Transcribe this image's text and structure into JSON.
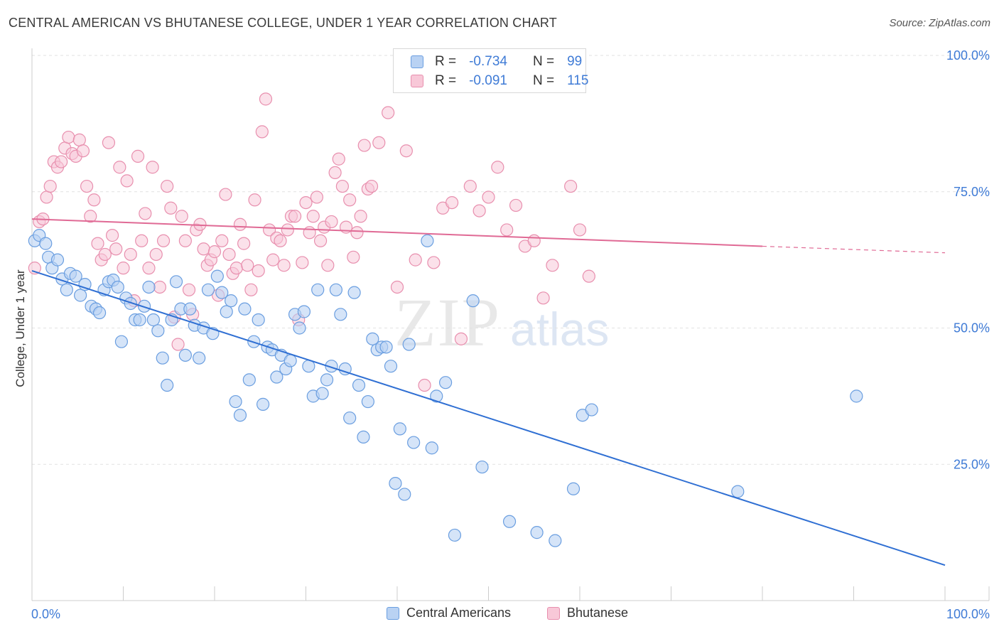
{
  "title": "CENTRAL AMERICAN VS BHUTANESE COLLEGE, UNDER 1 YEAR CORRELATION CHART",
  "source": "Source: ZipAtlas.com",
  "watermark": {
    "zip": "ZIP",
    "atlas": "atlas"
  },
  "legend": {
    "rows": [
      {
        "r_label": "R =",
        "r_value": "-0.734",
        "n_label": "N =",
        "n_value": "99"
      },
      {
        "r_label": "R =",
        "r_value": "-0.091",
        "n_label": "N =",
        "n_value": "115"
      }
    ]
  },
  "bottom_legend": [
    "Central Americans",
    "Bhutanese"
  ],
  "colors": {
    "blue_fill": "#b9d2f3",
    "blue_stroke": "#6a9ee0",
    "blue_line": "#2f6fd3",
    "pink_fill": "#f8c8d8",
    "pink_stroke": "#e88fae",
    "pink_line": "#e06a95",
    "tick_label": "#3f7bd6",
    "grid": "#e2e2e2"
  },
  "chart_data": {
    "type": "scatter",
    "xlabel": "",
    "ylabel": "College, Under 1 year",
    "xlim": [
      0,
      100
    ],
    "ylim": [
      0,
      100
    ],
    "x_tick_labels": [
      "0.0%",
      "100.0%"
    ],
    "y_tick_labels": [
      "25.0%",
      "50.0%",
      "75.0%",
      "100.0%"
    ],
    "y_ticks": [
      25,
      50,
      75,
      100
    ],
    "grid": true,
    "series": [
      {
        "name": "Central Americans",
        "trend": {
          "x0": 0,
          "y0": 60.5,
          "x1": 100,
          "y1": 6.5
        },
        "points": [
          [
            0.3,
            66
          ],
          [
            0.8,
            67
          ],
          [
            1.5,
            65.5
          ],
          [
            1.8,
            63
          ],
          [
            2.2,
            61
          ],
          [
            2.8,
            62.5
          ],
          [
            3.3,
            59
          ],
          [
            3.8,
            57
          ],
          [
            4.2,
            60
          ],
          [
            4.8,
            59.5
          ],
          [
            5.3,
            56
          ],
          [
            5.8,
            58
          ],
          [
            6.5,
            54
          ],
          [
            7.0,
            53.5
          ],
          [
            7.4,
            52.8
          ],
          [
            7.9,
            57
          ],
          [
            8.4,
            58.5
          ],
          [
            8.9,
            58.8
          ],
          [
            9.4,
            57.5
          ],
          [
            9.8,
            47.5
          ],
          [
            10.3,
            55.5
          ],
          [
            10.8,
            54.5
          ],
          [
            11.3,
            51.5
          ],
          [
            11.8,
            51.5
          ],
          [
            12.3,
            54
          ],
          [
            12.8,
            57.5
          ],
          [
            13.3,
            51.5
          ],
          [
            13.8,
            49.5
          ],
          [
            14.3,
            44.5
          ],
          [
            14.8,
            39.5
          ],
          [
            15.3,
            51.5
          ],
          [
            15.8,
            58.5
          ],
          [
            16.3,
            53.5
          ],
          [
            16.8,
            45
          ],
          [
            17.3,
            53.5
          ],
          [
            17.8,
            50.5
          ],
          [
            18.3,
            44.5
          ],
          [
            18.8,
            50
          ],
          [
            19.3,
            57
          ],
          [
            19.8,
            49
          ],
          [
            20.3,
            59.5
          ],
          [
            20.8,
            56.5
          ],
          [
            21.3,
            53
          ],
          [
            21.8,
            55
          ],
          [
            22.3,
            36.5
          ],
          [
            22.8,
            34
          ],
          [
            23.3,
            53.5
          ],
          [
            23.8,
            40.5
          ],
          [
            24.3,
            47.5
          ],
          [
            24.8,
            51.5
          ],
          [
            25.3,
            36
          ],
          [
            25.8,
            46.5
          ],
          [
            26.3,
            46
          ],
          [
            26.8,
            41
          ],
          [
            27.3,
            45
          ],
          [
            27.8,
            42.5
          ],
          [
            28.3,
            44
          ],
          [
            28.8,
            52.5
          ],
          [
            29.3,
            50
          ],
          [
            29.8,
            53
          ],
          [
            30.3,
            43
          ],
          [
            30.8,
            37.5
          ],
          [
            31.3,
            57
          ],
          [
            31.8,
            38
          ],
          [
            32.3,
            40.5
          ],
          [
            32.8,
            43
          ],
          [
            33.3,
            57
          ],
          [
            33.8,
            52.5
          ],
          [
            34.3,
            42.5
          ],
          [
            34.8,
            33.5
          ],
          [
            35.3,
            56.5
          ],
          [
            35.8,
            39.5
          ],
          [
            36.3,
            30
          ],
          [
            36.8,
            36.5
          ],
          [
            37.3,
            48
          ],
          [
            37.8,
            46
          ],
          [
            38.3,
            46.5
          ],
          [
            38.8,
            46.5
          ],
          [
            39.3,
            43
          ],
          [
            39.8,
            21.5
          ],
          [
            40.3,
            31.5
          ],
          [
            40.8,
            19.5
          ],
          [
            41.3,
            47
          ],
          [
            41.8,
            29
          ],
          [
            43.8,
            28
          ],
          [
            44.3,
            37.5
          ],
          [
            45.3,
            40
          ],
          [
            46.3,
            12
          ],
          [
            48.3,
            55
          ],
          [
            49.3,
            24.5
          ],
          [
            52.3,
            14.5
          ],
          [
            55.3,
            12.5
          ],
          [
            57.3,
            11
          ],
          [
            59.3,
            20.5
          ],
          [
            60.3,
            34
          ],
          [
            61.3,
            35
          ],
          [
            77.3,
            20
          ],
          [
            90.3,
            37.5
          ],
          [
            43.3,
            66
          ]
        ]
      },
      {
        "name": "Bhutanese",
        "trend": {
          "x0": 0,
          "y0": 70,
          "x1": 80,
          "y1": 65,
          "dash_x1": 100,
          "dash_y1": 63.8
        },
        "points": [
          [
            0.3,
            61
          ],
          [
            0.8,
            69.5
          ],
          [
            1.2,
            70
          ],
          [
            1.6,
            74
          ],
          [
            2.0,
            76
          ],
          [
            2.4,
            80.5
          ],
          [
            2.8,
            79.5
          ],
          [
            3.2,
            80.5
          ],
          [
            3.6,
            83
          ],
          [
            4.0,
            85
          ],
          [
            4.4,
            82
          ],
          [
            4.8,
            81.5
          ],
          [
            5.2,
            84.5
          ],
          [
            5.6,
            82.5
          ],
          [
            6.0,
            76
          ],
          [
            6.4,
            70.5
          ],
          [
            6.8,
            73.5
          ],
          [
            7.2,
            65.5
          ],
          [
            7.6,
            62.5
          ],
          [
            8.0,
            63.5
          ],
          [
            8.4,
            84
          ],
          [
            8.8,
            67
          ],
          [
            9.2,
            64.5
          ],
          [
            9.6,
            79.5
          ],
          [
            10.0,
            61
          ],
          [
            10.4,
            77
          ],
          [
            10.8,
            63.5
          ],
          [
            11.2,
            55
          ],
          [
            11.6,
            81.5
          ],
          [
            12.0,
            66
          ],
          [
            12.4,
            71
          ],
          [
            12.8,
            61
          ],
          [
            13.2,
            79.5
          ],
          [
            13.6,
            63.5
          ],
          [
            14.0,
            57.5
          ],
          [
            14.4,
            66
          ],
          [
            14.8,
            76
          ],
          [
            15.2,
            72
          ],
          [
            15.6,
            52
          ],
          [
            16.0,
            47
          ],
          [
            16.4,
            70.5
          ],
          [
            16.8,
            66
          ],
          [
            17.2,
            57
          ],
          [
            17.6,
            52.5
          ],
          [
            18.0,
            68
          ],
          [
            18.4,
            69
          ],
          [
            18.8,
            64.5
          ],
          [
            19.2,
            61.5
          ],
          [
            19.6,
            62.5
          ],
          [
            20.0,
            64
          ],
          [
            20.4,
            56
          ],
          [
            20.8,
            66
          ],
          [
            21.2,
            74.5
          ],
          [
            21.6,
            63.5
          ],
          [
            22.0,
            60
          ],
          [
            22.4,
            61
          ],
          [
            22.8,
            69
          ],
          [
            23.2,
            65.5
          ],
          [
            23.6,
            61.5
          ],
          [
            24.0,
            57
          ],
          [
            24.4,
            73.5
          ],
          [
            24.8,
            60.5
          ],
          [
            25.2,
            86
          ],
          [
            25.6,
            92
          ],
          [
            26.0,
            68
          ],
          [
            26.4,
            62.5
          ],
          [
            26.8,
            66.5
          ],
          [
            27.2,
            66
          ],
          [
            27.6,
            61.5
          ],
          [
            28.0,
            68
          ],
          [
            28.4,
            70.5
          ],
          [
            28.8,
            70.5
          ],
          [
            29.2,
            51.5
          ],
          [
            29.6,
            62
          ],
          [
            30.0,
            73
          ],
          [
            30.4,
            67.5
          ],
          [
            30.8,
            70.5
          ],
          [
            31.2,
            74
          ],
          [
            31.6,
            66
          ],
          [
            32.0,
            68.5
          ],
          [
            32.4,
            61.5
          ],
          [
            32.8,
            69.5
          ],
          [
            33.2,
            78.5
          ],
          [
            33.6,
            81
          ],
          [
            34.0,
            76
          ],
          [
            34.4,
            68.5
          ],
          [
            34.8,
            73.5
          ],
          [
            35.2,
            63
          ],
          [
            35.6,
            67.5
          ],
          [
            36.0,
            70.5
          ],
          [
            36.4,
            83.5
          ],
          [
            36.8,
            75.5
          ],
          [
            37.2,
            76
          ],
          [
            38.0,
            84
          ],
          [
            39.0,
            89.5
          ],
          [
            40.0,
            57.5
          ],
          [
            41.0,
            82.5
          ],
          [
            42.0,
            62.5
          ],
          [
            43.0,
            39.5
          ],
          [
            44.0,
            62
          ],
          [
            45.0,
            72
          ],
          [
            46.0,
            73
          ],
          [
            47.0,
            48
          ],
          [
            48.0,
            76
          ],
          [
            49.0,
            71.5
          ],
          [
            50.0,
            74
          ],
          [
            51.0,
            79.5
          ],
          [
            52.0,
            68
          ],
          [
            53.0,
            72.5
          ],
          [
            54.0,
            65
          ],
          [
            55.0,
            66
          ],
          [
            56.0,
            55.5
          ],
          [
            57.0,
            61.5
          ],
          [
            59.0,
            76
          ],
          [
            60.0,
            68
          ],
          [
            61.0,
            59.5
          ]
        ]
      }
    ]
  }
}
